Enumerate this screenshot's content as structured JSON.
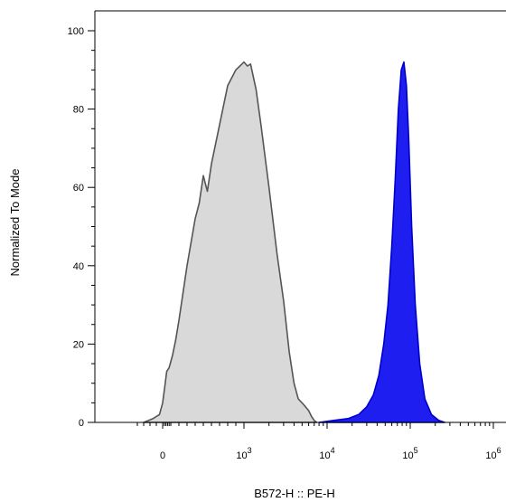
{
  "chart_data": {
    "type": "area",
    "xlabel": "B572-H :: PE-H",
    "ylabel": "Normalized To Mode",
    "x_scale": "biexponential",
    "ylim": [
      0,
      100
    ],
    "y_ticks": [
      0,
      20,
      40,
      60,
      80,
      100
    ],
    "x_ticks": [
      {
        "value": 0,
        "base": "0",
        "exp": ""
      },
      {
        "value": 1000,
        "base": "10",
        "exp": "3"
      },
      {
        "value": 10000,
        "base": "10",
        "exp": "4"
      },
      {
        "value": 100000,
        "base": "10",
        "exp": "5"
      },
      {
        "value": 1000000,
        "base": "10",
        "exp": "6"
      }
    ],
    "grid": false,
    "legend": "none",
    "series": [
      {
        "fill": "#d9d9d9",
        "stroke": "#555555",
        "x": [
          -60,
          -30,
          -10,
          0,
          25,
          50,
          80,
          120,
          160,
          200,
          250,
          300,
          350,
          400,
          450,
          500,
          550,
          600,
          700,
          800,
          900,
          1000,
          1100,
          1200,
          1400,
          1600,
          2000,
          2500,
          3000,
          3500,
          4000,
          4500,
          5000,
          5500,
          6000,
          6500,
          7000,
          7500
        ],
        "y": [
          0,
          1,
          2,
          5,
          9,
          13,
          14,
          17,
          21,
          26,
          33,
          40,
          46,
          52,
          56,
          63,
          59,
          66,
          76,
          86,
          90,
          92,
          91,
          91.5,
          85,
          76,
          60,
          43,
          31,
          18,
          10,
          6,
          5,
          4,
          3,
          1.5,
          0.5,
          0
        ]
      },
      {
        "fill": "#1e1ef0",
        "stroke": "#0000cc",
        "x": [
          8000,
          12000,
          18000,
          24000,
          30000,
          36000,
          42000,
          48000,
          54000,
          60000,
          66000,
          72000,
          78000,
          84000,
          90000,
          96000,
          104000,
          115000,
          130000,
          150000,
          180000,
          220000,
          260000
        ],
        "y": [
          0,
          0.5,
          1,
          2,
          4,
          7,
          12,
          20,
          30,
          45,
          62,
          80,
          90,
          92,
          86,
          72,
          50,
          30,
          15,
          6,
          2,
          0.5,
          0
        ]
      }
    ]
  }
}
